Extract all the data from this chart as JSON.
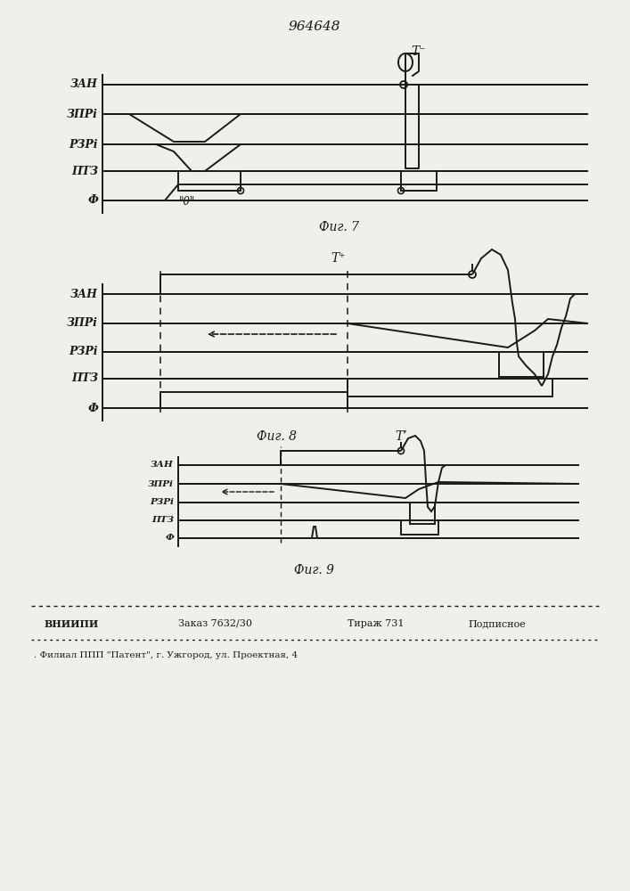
{
  "patent_number": "964648",
  "fig7_label": "Фиг. 7",
  "fig8_label": "Фиг. 8",
  "fig9_label": "Фиг. 9",
  "lbl_zan": "ЗАН",
  "lbl_zpr": "ЗПРi",
  "lbl_rzr": "РЗРi",
  "lbl_ptz": "ПТЗ",
  "lbl_f": "Ф",
  "footer_vniip": "ВНИИПИ",
  "footer_order": "Заказ 7632/30",
  "footer_tiraj": "Тираж 731",
  "footer_podp": "Подписное",
  "footer_filial": ". Филиал ППП \"Патент\", г. Ужгород, ул. Проектная, 4",
  "zero_label": "\"0\"",
  "T_minus": "T⁻",
  "T_plus": "T⁺",
  "T_prime": "T’",
  "bg_color": "#f0efea",
  "line_color": "#1a1a1a"
}
